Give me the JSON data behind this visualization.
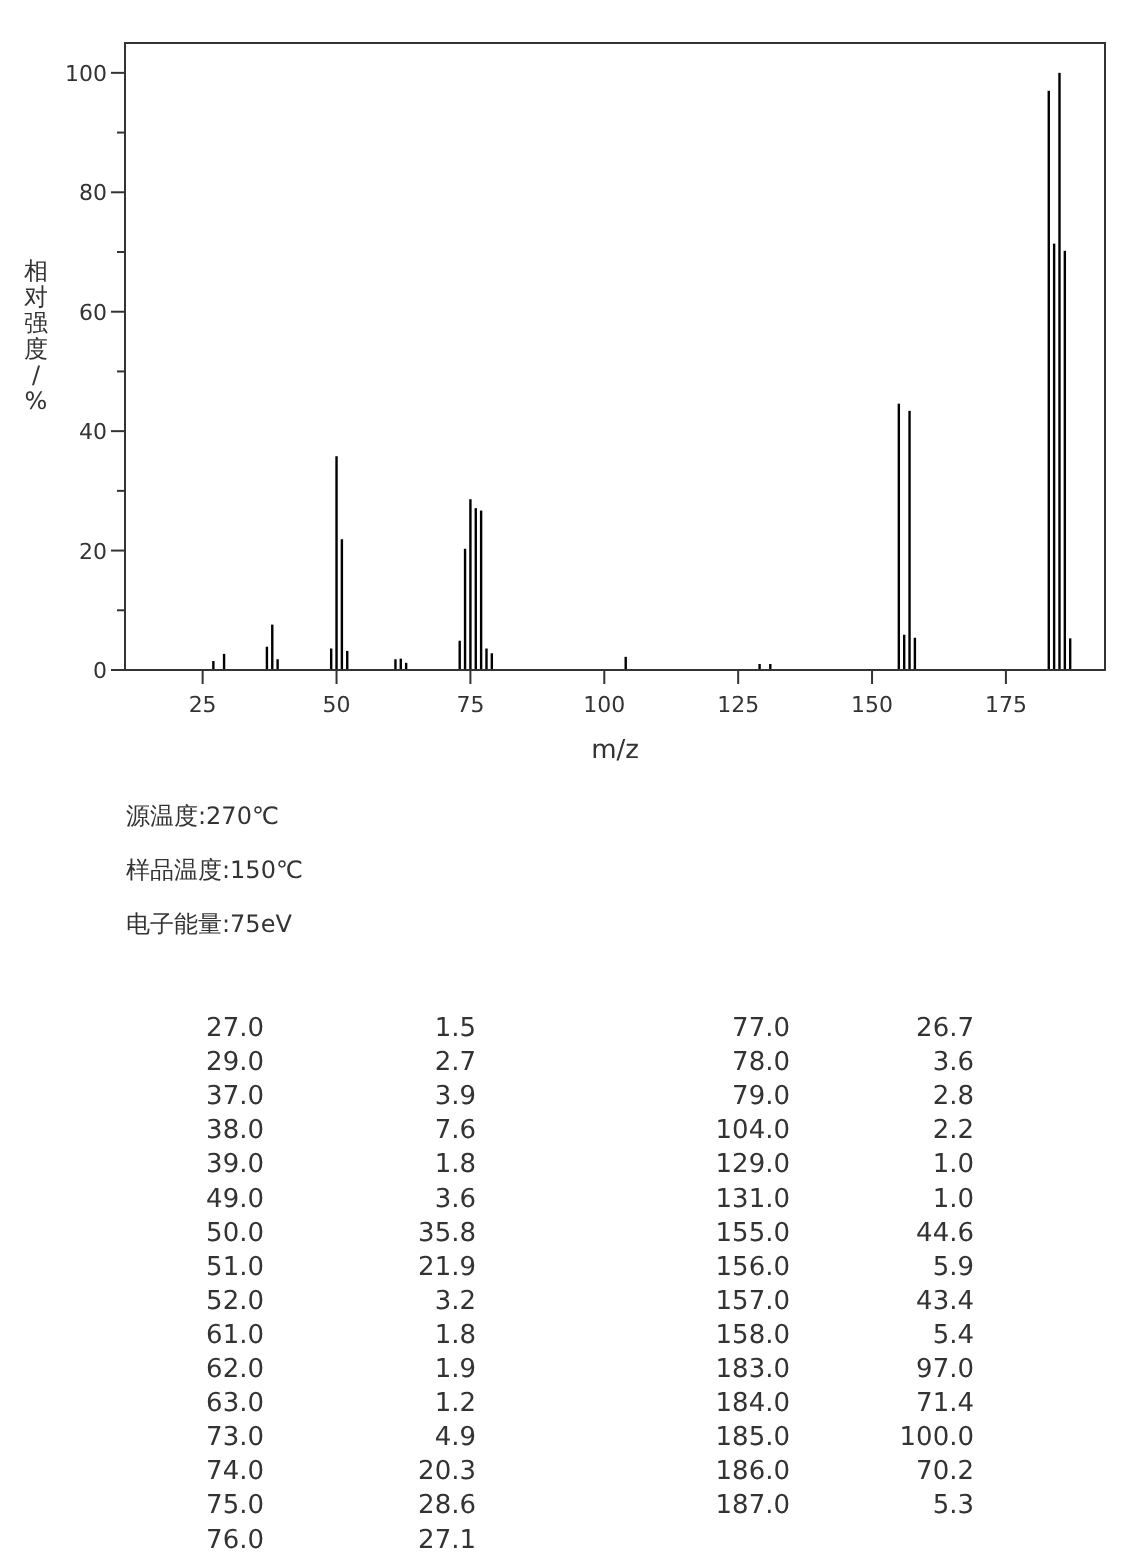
{
  "chart_data": {
    "type": "bar",
    "xlabel": "m/z",
    "ylabel": "相对强度/%",
    "annotations": [
      "源温度:270℃",
      "样品温度:150℃",
      "电子能量:75eV",
      "27.0",
      "1.5",
      "77.0",
      "26.7",
      "29.0",
      "2.7",
      "78.0",
      "3.6",
      "37.0",
      "3.9",
      "79.0",
      "2.8",
      "38.0",
      "7.6",
      "104.0",
      "2.2",
      "39.0",
      "1.8",
      "129.0",
      "1.0",
      "49.0",
      "3.6",
      "131.0",
      "1.0",
      "50.0",
      "35.8",
      "155.0",
      "44.6",
      "51.0",
      "21.9",
      "156.0",
      "5.9",
      "52.0",
      "3.2",
      "157.0",
      "43.4",
      "61.0",
      "1.8",
      "158.0",
      "5.4",
      "62.0",
      "1.9",
      "183.0",
      "97.0",
      "63.0",
      "1.2",
      "184.0",
      "71.4",
      "73.0",
      "4.9",
      "185.0",
      "100.0",
      "74.0",
      "20.3",
      "186.0",
      "70.2",
      "75.0",
      "28.6",
      "187.0",
      "5.3",
      "76.0",
      "27.1"
    ],
    "x": [
      27,
      29,
      37,
      38,
      39,
      49,
      50,
      51,
      52,
      61,
      62,
      63,
      73,
      74,
      75,
      76,
      77,
      78,
      79,
      104,
      129,
      131,
      155,
      156,
      157,
      158,
      183,
      184,
      185,
      186,
      187
    ],
    "values": [
      1.5,
      2.7,
      3.9,
      7.6,
      1.8,
      3.6,
      35.8,
      21.9,
      3.2,
      1.8,
      1.9,
      1.2,
      4.9,
      20.3,
      28.6,
      27.1,
      26.7,
      3.6,
      2.8,
      2.2,
      1.0,
      1.0,
      44.6,
      5.9,
      43.4,
      5.4,
      97.0,
      71.4,
      100.0,
      70.2,
      5.3
    ],
    "color": "#000000",
    "xlim": [
      10.5,
      193.5
    ],
    "xticks": [
      25,
      50,
      75,
      100,
      125,
      150,
      175
    ],
    "ylim": [
      0,
      105
    ],
    "yticks": [
      0,
      {
        "value": 10,
        "label": null
      },
      20,
      {
        "value": 30,
        "label": null
      },
      40,
      {
        "value": 50,
        "label": null
      },
      60,
      {
        "value": 70,
        "label": null
      },
      80,
      {
        "value": 90,
        "label": null
      },
      100
    ]
  }
}
